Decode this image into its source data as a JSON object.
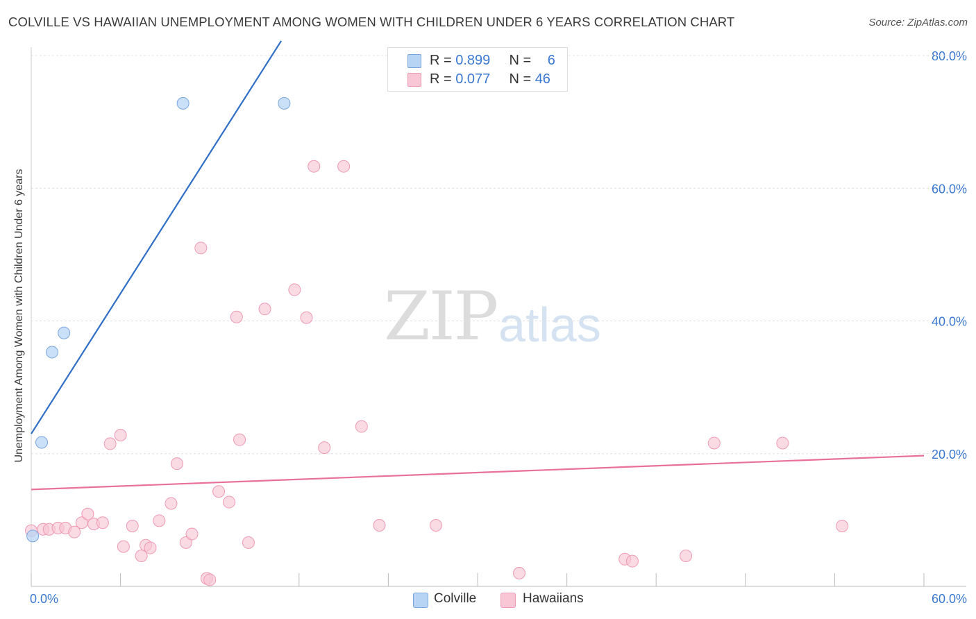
{
  "title": "COLVILLE VS HAWAIIAN UNEMPLOYMENT AMONG WOMEN WITH CHILDREN UNDER 6 YEARS CORRELATION CHART",
  "source": "Source: ZipAtlas.com",
  "watermark": {
    "zip": "ZIP",
    "atlas": "atlas"
  },
  "colors": {
    "colville_fill": "#b8d4f5",
    "colville_stroke": "#7aa6dc",
    "colville_line": "#2f6fc6",
    "hawaiians_fill": "#f8c6d4",
    "hawaiians_stroke": "#ee9ab4",
    "hawaiians_line": "#e8709a",
    "axis_tick_label": "#3b78d0",
    "grid": "#e0e0e0"
  },
  "legend": {
    "rows": [
      {
        "r_label": "R = ",
        "r_value": "0.899",
        "n_label": "N = ",
        "n_value": "6"
      },
      {
        "r_label": "R = ",
        "r_value": "0.077",
        "n_label": "N = ",
        "n_value": "46"
      }
    ]
  },
  "chart_data": {
    "type": "scatter",
    "title": "COLVILLE VS HAWAIIAN UNEMPLOYMENT AMONG WOMEN WITH CHILDREN UNDER 6 YEARS CORRELATION CHART",
    "xlabel": "",
    "ylabel": "Unemployment Among Women with Children Under 6 years",
    "xlim": [
      0,
      60
    ],
    "ylim": [
      0,
      80
    ],
    "x_tick_labels": [
      "0.0%",
      "60.0%"
    ],
    "y_ticks": [
      20,
      40,
      60,
      80
    ],
    "y_tick_labels": [
      "20.0%",
      "40.0%",
      "60.0%",
      "80.0%"
    ],
    "grid": true,
    "legend_position": "bottom-center",
    "series": [
      {
        "name": "Colville",
        "points": [
          [
            0.1,
            7.6
          ],
          [
            0.7,
            21.7
          ],
          [
            1.4,
            35.3
          ],
          [
            2.2,
            38.2
          ],
          [
            10.2,
            72.8
          ],
          [
            17.0,
            72.8
          ]
        ],
        "trend": {
          "x": [
            0.0,
            16.8
          ],
          "y": [
            23.0,
            82.2
          ]
        }
      },
      {
        "name": "Hawaiians",
        "points": [
          [
            0.0,
            8.4
          ],
          [
            0.8,
            8.6
          ],
          [
            1.2,
            8.6
          ],
          [
            1.8,
            8.8
          ],
          [
            2.3,
            8.8
          ],
          [
            2.9,
            8.2
          ],
          [
            3.4,
            9.6
          ],
          [
            3.8,
            10.9
          ],
          [
            4.2,
            9.4
          ],
          [
            4.8,
            9.6
          ],
          [
            5.3,
            21.5
          ],
          [
            6.0,
            22.8
          ],
          [
            6.2,
            6.0
          ],
          [
            6.8,
            9.1
          ],
          [
            7.4,
            4.6
          ],
          [
            7.7,
            6.2
          ],
          [
            8.0,
            5.8
          ],
          [
            8.6,
            9.9
          ],
          [
            9.4,
            12.5
          ],
          [
            9.8,
            18.5
          ],
          [
            10.4,
            6.6
          ],
          [
            10.8,
            7.9
          ],
          [
            11.4,
            51.0
          ],
          [
            11.8,
            1.2
          ],
          [
            12.0,
            1.0
          ],
          [
            12.6,
            14.3
          ],
          [
            13.3,
            12.7
          ],
          [
            13.8,
            40.6
          ],
          [
            14.0,
            22.1
          ],
          [
            14.6,
            6.6
          ],
          [
            15.7,
            41.8
          ],
          [
            17.7,
            44.7
          ],
          [
            18.5,
            40.5
          ],
          [
            19.0,
            63.3
          ],
          [
            19.7,
            20.9
          ],
          [
            21.0,
            63.3
          ],
          [
            22.2,
            24.1
          ],
          [
            23.4,
            9.2
          ],
          [
            27.2,
            9.2
          ],
          [
            32.8,
            2.0
          ],
          [
            39.9,
            4.1
          ],
          [
            40.4,
            3.8
          ],
          [
            44.0,
            4.6
          ],
          [
            45.9,
            21.6
          ],
          [
            50.5,
            21.6
          ],
          [
            54.5,
            9.1
          ]
        ],
        "trend": {
          "x": [
            0.0,
            60.0
          ],
          "y": [
            14.6,
            19.7
          ]
        }
      }
    ]
  },
  "bottom_legend": {
    "items": [
      "Colville",
      "Hawaiians"
    ]
  }
}
